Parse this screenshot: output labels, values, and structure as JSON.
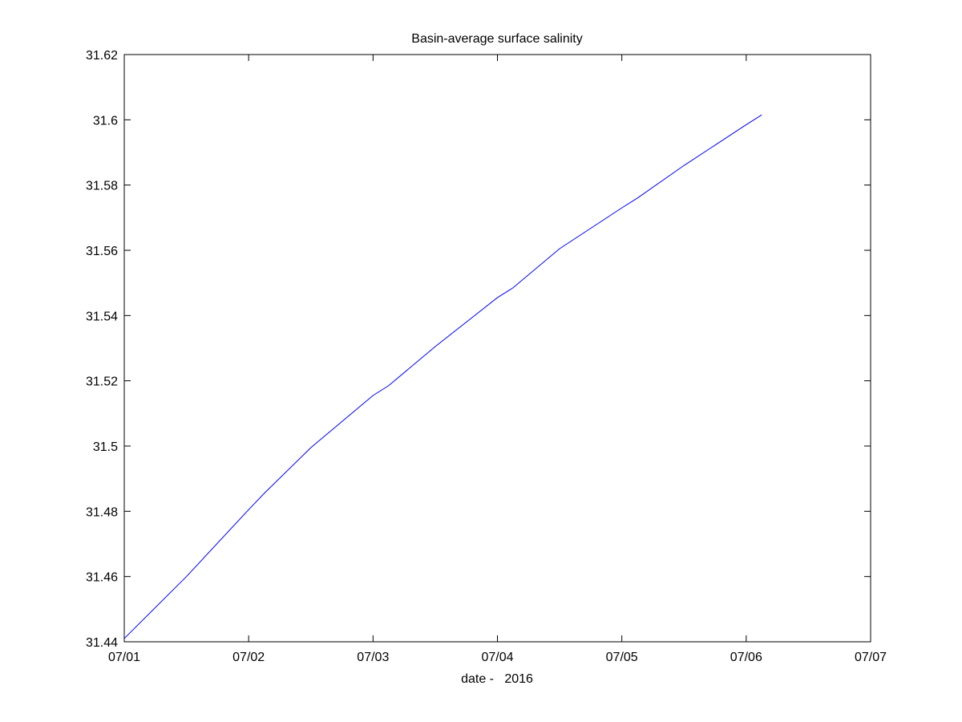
{
  "chart_data": {
    "type": "line",
    "title": "Basin-average surface salinity",
    "xlabel": "date -   2016",
    "ylabel": "",
    "x_tick_labels": [
      "07/01",
      "07/02",
      "07/03",
      "07/04",
      "07/05",
      "07/06",
      "07/07"
    ],
    "y_tick_labels": [
      "31.44",
      "31.46",
      "31.48",
      "31.5",
      "31.52",
      "31.54",
      "31.56",
      "31.58",
      "31.6",
      "31.62"
    ],
    "x_unit": "day",
    "xlim": [
      "2016-07-01",
      "2016-07-07"
    ],
    "ylim": [
      31.44,
      31.62
    ],
    "grid": false,
    "line_color": "#0000ff",
    "series": [
      {
        "x": [
          "2016-07-01 00:00",
          "2016-07-01 12:00",
          "2016-07-02 00:00",
          "2016-07-02 03:00",
          "2016-07-02 12:00",
          "2016-07-03 00:00",
          "2016-07-03 03:00",
          "2016-07-03 12:00",
          "2016-07-04 00:00",
          "2016-07-04 03:00",
          "2016-07-04 12:00",
          "2016-07-05 00:00",
          "2016-07-05 03:00",
          "2016-07-05 12:00",
          "2016-07-06 00:00",
          "2016-07-06 03:00"
        ],
        "values": [
          31.441,
          31.46,
          31.4805,
          31.4855,
          31.4995,
          31.5155,
          31.5185,
          31.5305,
          31.5455,
          31.5485,
          31.5605,
          31.573,
          31.576,
          31.586,
          31.5985,
          31.6015
        ]
      }
    ]
  }
}
